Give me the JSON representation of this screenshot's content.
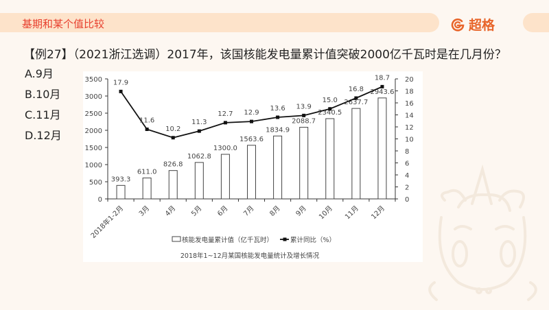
{
  "header": {
    "section_title": "基期和某个值比较",
    "brand_name": "超格",
    "brand_icon": "g-logo-icon"
  },
  "question": {
    "text": "【例27】（2021浙江选调）2017年，该国核能发电量累计值突破2000亿千瓦时是在几月份？",
    "options": [
      {
        "label": "A.9月"
      },
      {
        "label": "B.10月"
      },
      {
        "label": "C.11月"
      },
      {
        "label": "D.12月"
      }
    ]
  },
  "colors": {
    "section_title": "#e8412f",
    "brand": "#e8652a",
    "band": "#fde3ca",
    "background": "#fdf7f1"
  },
  "chart_data": {
    "type": "bar+line",
    "title": "2018年1~12月某国核能发电量统计及增长情况",
    "categories": [
      "2018年1-2月",
      "3月",
      "4月",
      "5月",
      "6月",
      "7月",
      "8月",
      "9月",
      "10月",
      "11月",
      "12月"
    ],
    "series": [
      {
        "name": "核能发电量累计值（亿千瓦时）",
        "type": "bar",
        "axis": "left",
        "values": [
          393.3,
          611.0,
          826.8,
          1062.8,
          1300.0,
          1563.6,
          1834.9,
          2088.7,
          2340.5,
          2637.7,
          2943.6
        ],
        "labels": [
          "393.3",
          "611.0",
          "826.8",
          "1062.8",
          "1300.0",
          "1563.6",
          "1834.9",
          "2088.7",
          "2340.5",
          "2637.7",
          "2943.6"
        ]
      },
      {
        "name": "累计同比（%）",
        "type": "line",
        "axis": "right",
        "values": [
          17.9,
          11.6,
          10.2,
          11.3,
          12.7,
          12.9,
          13.6,
          13.9,
          15.0,
          16.8,
          18.7
        ],
        "labels": [
          "17.9",
          "11.6",
          "10.2",
          "11.3",
          "12.7",
          "12.9",
          "13.6",
          "13.9",
          "15.0",
          "16.8",
          "18.7"
        ]
      }
    ],
    "left_axis": {
      "range": [
        0,
        3500
      ],
      "ticks": [
        "0",
        "500",
        "1000",
        "1500",
        "2000",
        "2500",
        "3000",
        "3500"
      ]
    },
    "right_axis": {
      "range": [
        0,
        20
      ],
      "ticks": [
        "0",
        "2",
        "4",
        "6",
        "8",
        "10",
        "12",
        "14",
        "16",
        "18",
        "20"
      ]
    },
    "legend": {
      "position": "bottom",
      "items": [
        "核能发电量累计值（亿千瓦时）",
        "累计同比（%）"
      ]
    },
    "grid": false
  }
}
